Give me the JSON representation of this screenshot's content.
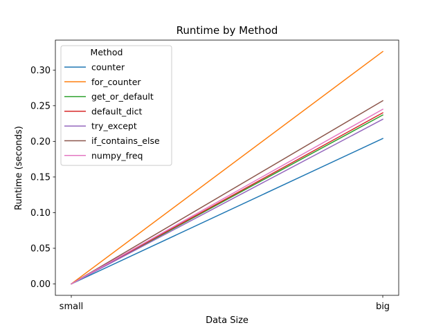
{
  "chart_data": {
    "type": "line",
    "title": "Runtime by Method",
    "xlabel": "Data Size",
    "ylabel": "Runtime (seconds)",
    "categories": [
      "small",
      "big"
    ],
    "ylim": [
      -0.016,
      0.342
    ],
    "yticks": [
      0.0,
      0.05,
      0.1,
      0.15,
      0.2,
      0.25,
      0.3
    ],
    "ytick_labels": [
      "0.00",
      "0.05",
      "0.10",
      "0.15",
      "0.20",
      "0.25",
      "0.30"
    ],
    "grid": false,
    "legend": {
      "title": "Method",
      "placement": "top-left"
    },
    "series": [
      {
        "name": "counter",
        "color": "#1f77b4",
        "values": [
          0.0,
          0.204
        ]
      },
      {
        "name": "for_counter",
        "color": "#ff7f0e",
        "values": [
          0.0,
          0.326
        ]
      },
      {
        "name": "get_or_default",
        "color": "#2ca02c",
        "values": [
          0.0,
          0.237
        ]
      },
      {
        "name": "default_dict",
        "color": "#d62728",
        "values": [
          0.0,
          0.24
        ]
      },
      {
        "name": "try_except",
        "color": "#9467bd",
        "values": [
          0.0,
          0.231
        ]
      },
      {
        "name": "if_contains_else",
        "color": "#8c564b",
        "values": [
          0.0,
          0.257
        ]
      },
      {
        "name": "numpy_freq",
        "color": "#e377c2",
        "values": [
          0.0,
          0.245
        ]
      }
    ]
  }
}
